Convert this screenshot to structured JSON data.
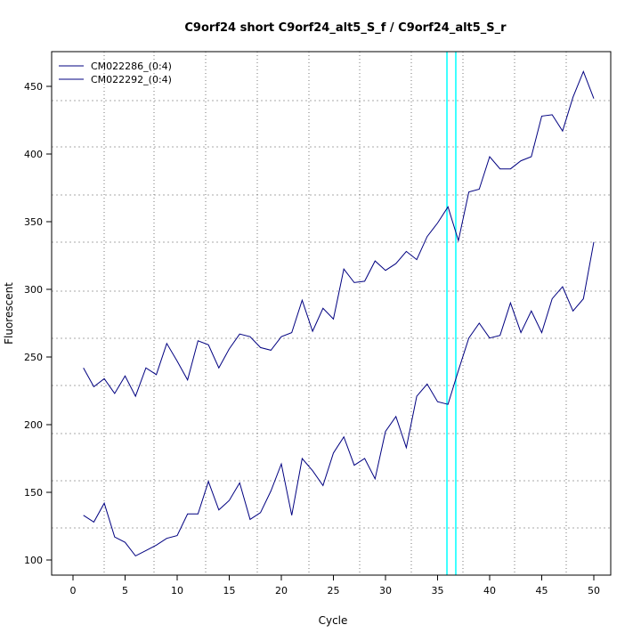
{
  "chart_data": {
    "type": "line",
    "title": "C9orf24 short C9orf24_alt5_S_f / C9orf24_alt5_S_r",
    "xlabel": "Cycle",
    "ylabel": "Fluorescent",
    "xlim": [
      -2,
      52
    ],
    "ylim": [
      90,
      474
    ],
    "xticks": [
      0,
      5,
      10,
      15,
      20,
      25,
      30,
      35,
      40,
      45,
      50
    ],
    "yticks": [
      100,
      150,
      200,
      250,
      300,
      350,
      400,
      450
    ],
    "legend_position": "top-left",
    "threshold_cycles": [
      35.9,
      36.75
    ],
    "threshold_color": "#00ffff",
    "x": [
      1,
      2,
      3,
      4,
      5,
      6,
      7,
      8,
      9,
      10,
      11,
      12,
      13,
      14,
      15,
      16,
      17,
      18,
      19,
      20,
      21,
      22,
      23,
      24,
      25,
      26,
      27,
      28,
      29,
      30,
      31,
      32,
      33,
      34,
      35,
      36,
      37,
      38,
      39,
      40,
      41,
      42,
      43,
      44,
      45,
      46,
      47,
      48,
      49,
      50
    ],
    "series": [
      {
        "name": "CM022286_(0:4)",
        "color": "#000080",
        "values": [
          242,
          228,
          234,
          223,
          236,
          221,
          242,
          237,
          260,
          247,
          233,
          262,
          259,
          242,
          256,
          267,
          265,
          257,
          255,
          265,
          268,
          292,
          269,
          286,
          278,
          315,
          305,
          306,
          321,
          314,
          319,
          328,
          322,
          339,
          349,
          361,
          336,
          372,
          374,
          398,
          389,
          389,
          395,
          398,
          428,
          429,
          417,
          442,
          461,
          441
        ]
      },
      {
        "name": "CM022292_(0:4)",
        "color": "#000080",
        "values": [
          133,
          128,
          142,
          117,
          113,
          103,
          107,
          111,
          116,
          118,
          134,
          134,
          158,
          137,
          144,
          157,
          130,
          135,
          151,
          171,
          133,
          175,
          166,
          155,
          179,
          191,
          170,
          175,
          160,
          195,
          206,
          183,
          221,
          230,
          217,
          215,
          240,
          264,
          275,
          264,
          266,
          290,
          268,
          284,
          268,
          293,
          302,
          284,
          293,
          335
        ]
      }
    ]
  }
}
